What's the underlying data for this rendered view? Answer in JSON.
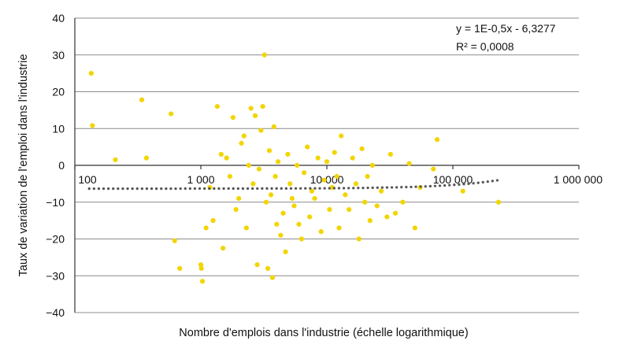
{
  "chart_data": {
    "type": "scatter",
    "xscale": "log",
    "xlabel": "Nombre d'emplois dans l'industrie (échelle logarithmique)",
    "ylabel": "Taux de variation de l'emploi dans l'industrie",
    "xlim": [
      100,
      1000000
    ],
    "ylim": [
      -40,
      40
    ],
    "yticks": [
      40,
      30,
      20,
      10,
      0,
      -10,
      -20,
      -30,
      -40
    ],
    "ytick_labels": [
      "40",
      "30",
      "20",
      "10",
      "0",
      "−10",
      "−20",
      "−30",
      "−40"
    ],
    "xticks": [
      100,
      1000,
      10000,
      100000,
      1000000
    ],
    "xtick_labels": [
      "100",
      "1 000",
      "10 000",
      "100 000",
      "1 000 000"
    ],
    "grid": "horizontal",
    "annotation": [
      "y = 1E-0,5x  - 6,3277",
      "R² = 0,0008"
    ],
    "colors": {
      "points": "#f2d500",
      "trendline": "#555555",
      "grid": "#8c8c8c",
      "axis": "#333333"
    },
    "series": [
      {
        "values": [
          [
            135,
            25
          ],
          [
            138,
            10.8
          ],
          [
            210,
            1.5
          ],
          [
            340,
            17.8
          ],
          [
            370,
            2
          ],
          [
            580,
            14
          ],
          [
            620,
            -20.5
          ],
          [
            680,
            -28
          ],
          [
            1000,
            -27
          ],
          [
            1010,
            -28
          ],
          [
            1030,
            -31.5
          ],
          [
            1100,
            -17
          ],
          [
            1180,
            -6
          ],
          [
            1250,
            -15
          ],
          [
            1350,
            16
          ],
          [
            1450,
            3
          ],
          [
            1500,
            -22.5
          ],
          [
            1600,
            2
          ],
          [
            1700,
            -3
          ],
          [
            1800,
            13
          ],
          [
            1900,
            -12
          ],
          [
            2000,
            -9
          ],
          [
            2100,
            6
          ],
          [
            2200,
            8
          ],
          [
            2300,
            -17
          ],
          [
            2400,
            0
          ],
          [
            2500,
            15.5
          ],
          [
            2600,
            -5
          ],
          [
            2700,
            13.5
          ],
          [
            2800,
            -27
          ],
          [
            2900,
            -1
          ],
          [
            3000,
            9.5
          ],
          [
            3100,
            16
          ],
          [
            3200,
            30
          ],
          [
            3300,
            -10
          ],
          [
            3400,
            -28
          ],
          [
            3500,
            4
          ],
          [
            3600,
            -8
          ],
          [
            3700,
            -30.5
          ],
          [
            3800,
            10.5
          ],
          [
            3900,
            -3
          ],
          [
            4000,
            -16
          ],
          [
            4100,
            1
          ],
          [
            4300,
            -19
          ],
          [
            4500,
            -13
          ],
          [
            4700,
            -23.5
          ],
          [
            4900,
            3
          ],
          [
            5100,
            -5
          ],
          [
            5300,
            -9
          ],
          [
            5500,
            -11
          ],
          [
            5800,
            0
          ],
          [
            6000,
            -16
          ],
          [
            6300,
            -20
          ],
          [
            6600,
            -2
          ],
          [
            7000,
            5
          ],
          [
            7300,
            -14
          ],
          [
            7600,
            -7
          ],
          [
            8000,
            -9
          ],
          [
            8500,
            2
          ],
          [
            9000,
            -18
          ],
          [
            9500,
            -4
          ],
          [
            10000,
            1
          ],
          [
            10500,
            -12
          ],
          [
            11000,
            -6
          ],
          [
            11500,
            3.5
          ],
          [
            12000,
            -3
          ],
          [
            12500,
            -17
          ],
          [
            13000,
            8
          ],
          [
            14000,
            -8
          ],
          [
            15000,
            -12
          ],
          [
            16000,
            2
          ],
          [
            17000,
            -5
          ],
          [
            18000,
            -20
          ],
          [
            19000,
            4.5
          ],
          [
            20000,
            -10
          ],
          [
            21000,
            -3
          ],
          [
            22000,
            -15
          ],
          [
            23000,
            0
          ],
          [
            25000,
            -11
          ],
          [
            27000,
            -7
          ],
          [
            30000,
            -14
          ],
          [
            32000,
            3
          ],
          [
            35000,
            -13
          ],
          [
            40000,
            -10
          ],
          [
            45000,
            0.5
          ],
          [
            50000,
            -17
          ],
          [
            55000,
            -6
          ],
          [
            70000,
            -1
          ],
          [
            75000,
            7
          ],
          [
            120000,
            -7
          ],
          [
            230000,
            -10
          ]
        ]
      }
    ]
  }
}
